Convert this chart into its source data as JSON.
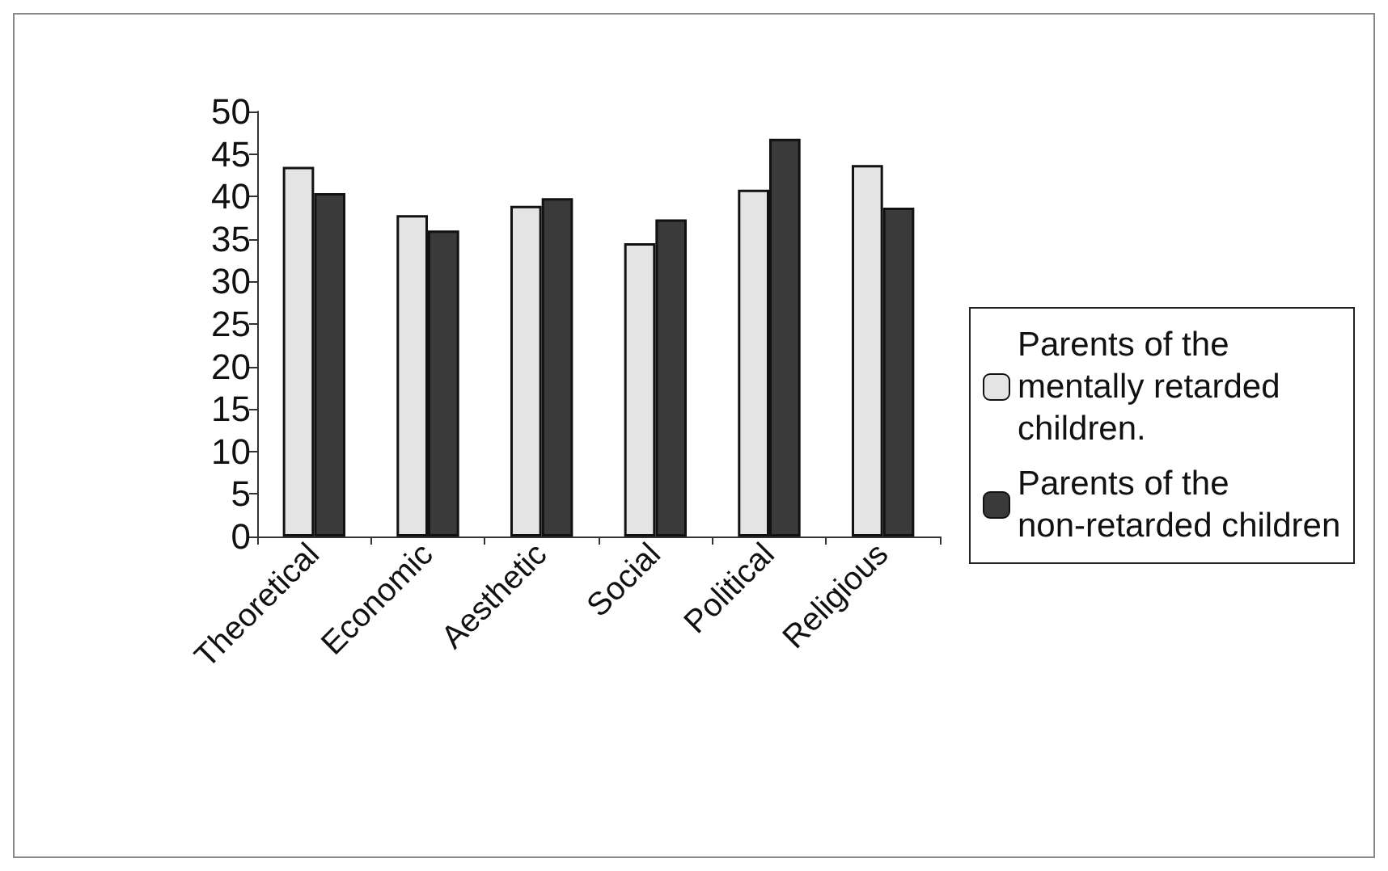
{
  "chart_data": {
    "type": "bar",
    "categories": [
      "Theoretical",
      "Economic",
      "Aesthetic",
      "Social",
      "Political",
      "Religious"
    ],
    "series": [
      {
        "name": "Parents of the mentally retarded children.",
        "color": "#e4e4e4",
        "values": [
          43.5,
          37.8,
          38.9,
          34.5,
          40.8,
          43.7
        ]
      },
      {
        "name": "Parents of the non-retarded children",
        "color": "#3a3a3a",
        "values": [
          40.4,
          36.0,
          39.8,
          37.3,
          46.8,
          38.7
        ]
      }
    ],
    "ylim": [
      0,
      50
    ],
    "yticks": [
      0,
      5,
      10,
      15,
      20,
      25,
      30,
      35,
      40,
      45,
      50
    ],
    "grid": false,
    "legend": "right"
  }
}
